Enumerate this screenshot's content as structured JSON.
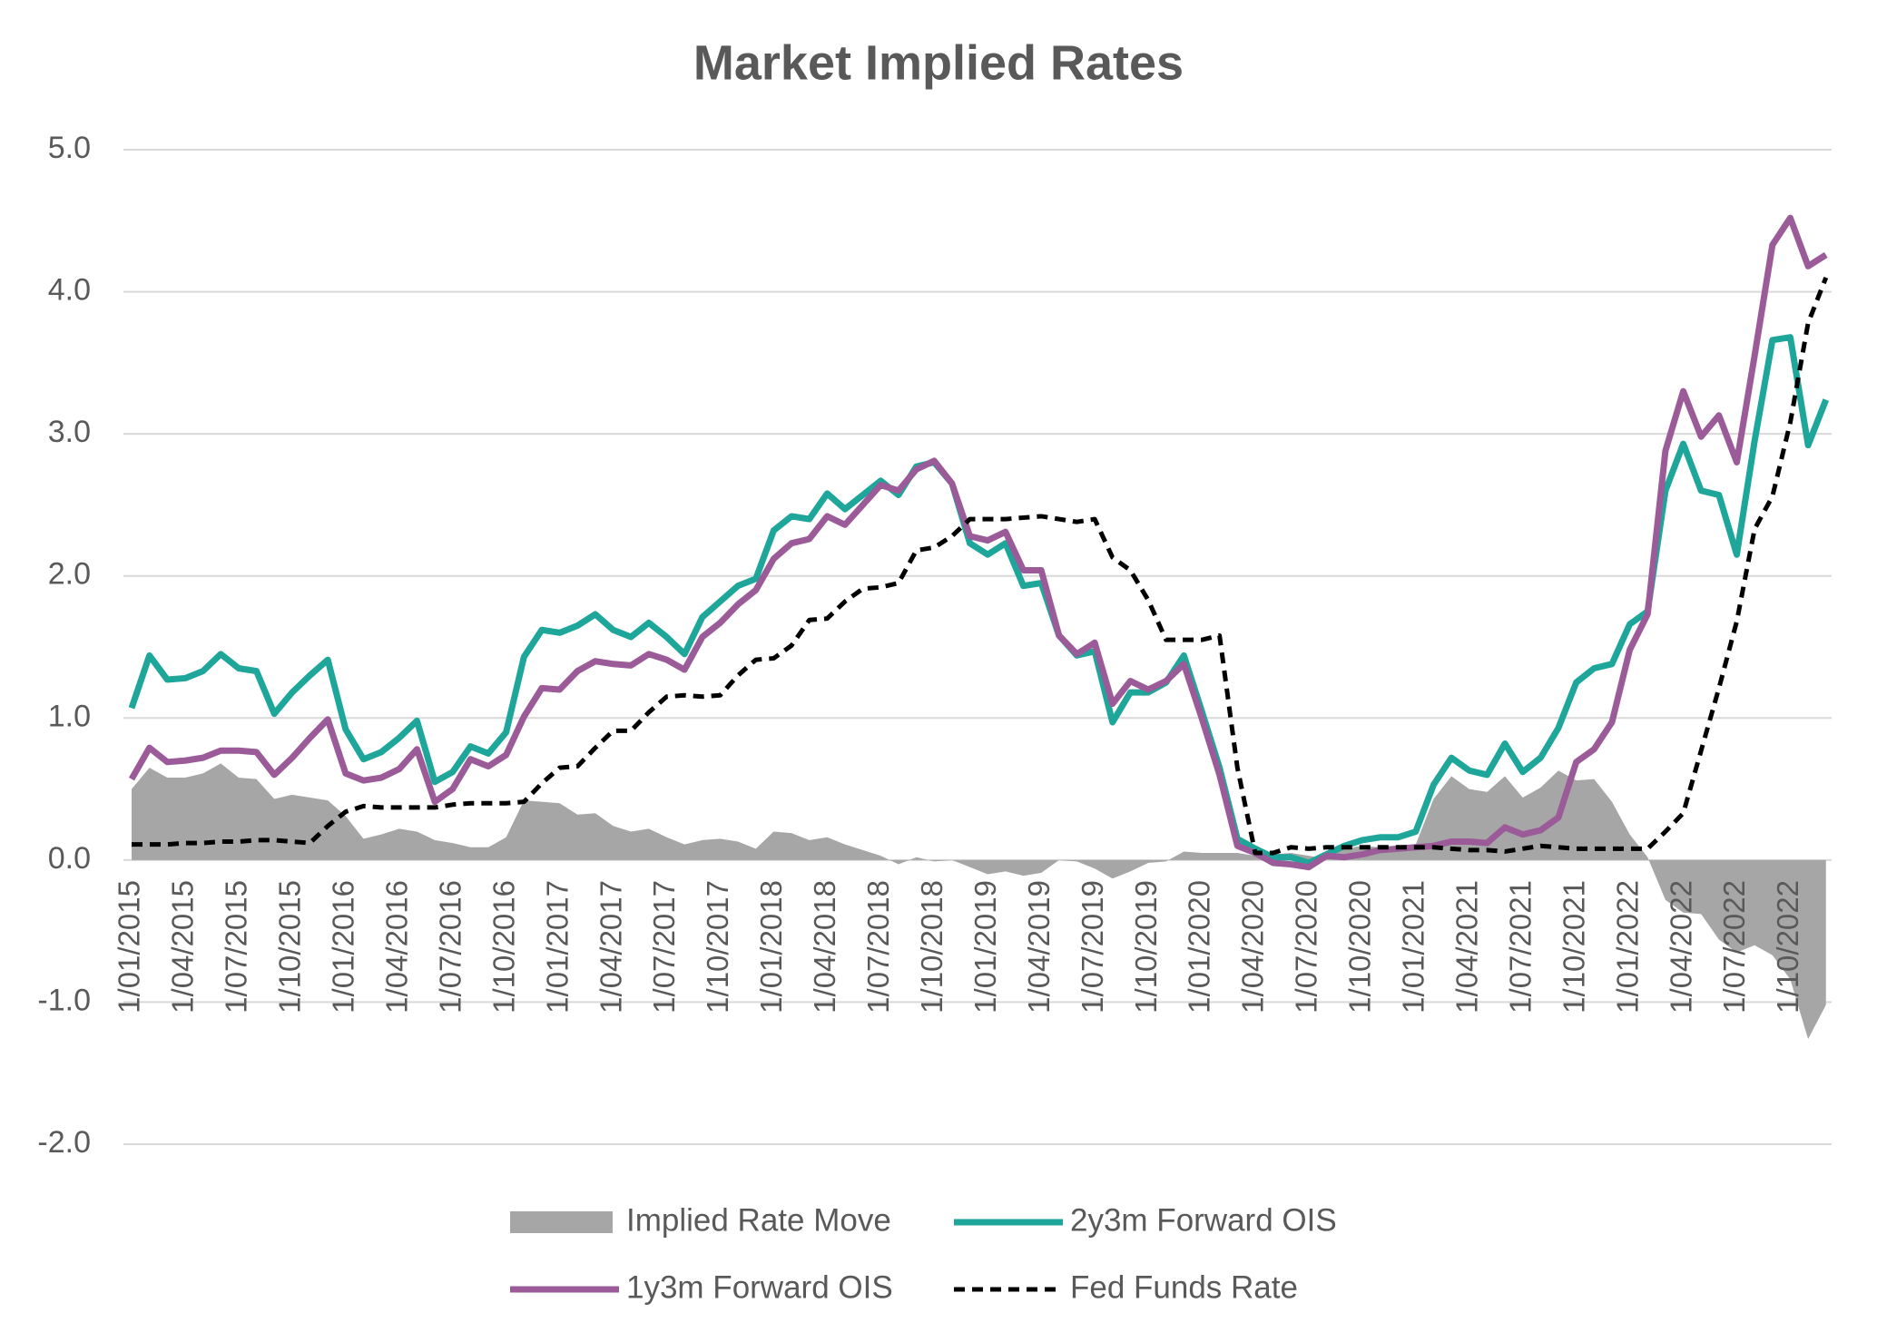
{
  "chart_data": {
    "type": "line",
    "title": "Market Implied Rates",
    "categories": [
      "1/01/2015",
      null,
      null,
      "1/04/2015",
      null,
      null,
      "1/07/2015",
      null,
      null,
      "1/10/2015",
      null,
      null,
      "1/01/2016",
      null,
      null,
      "1/04/2016",
      null,
      null,
      "1/07/2016",
      null,
      null,
      "1/10/2016",
      null,
      null,
      "1/01/2017",
      null,
      null,
      "1/04/2017",
      null,
      null,
      "1/07/2017",
      null,
      null,
      "1/10/2017",
      null,
      null,
      "1/01/2018",
      null,
      null,
      "1/04/2018",
      null,
      null,
      "1/07/2018",
      null,
      null,
      "1/10/2018",
      null,
      null,
      "1/01/2019",
      null,
      null,
      "1/04/2019",
      null,
      null,
      "1/07/2019",
      null,
      null,
      "1/10/2019",
      null,
      null,
      "1/01/2020",
      null,
      null,
      "1/04/2020",
      null,
      null,
      "1/07/2020",
      null,
      null,
      "1/10/2020",
      null,
      null,
      "1/01/2021",
      null,
      null,
      "1/04/2021",
      null,
      null,
      "1/07/2021",
      null,
      null,
      "1/10/2021",
      null,
      null,
      "1/01/2022",
      null,
      null,
      "1/04/2022",
      null,
      null,
      "1/07/2022",
      null,
      null,
      "1/10/2022",
      null,
      null
    ],
    "series": [
      {
        "name": "Implied Rate Move",
        "kind": "area",
        "color": "#a6a6a6",
        "values": [
          0.5,
          0.65,
          0.58,
          0.58,
          0.61,
          0.68,
          0.58,
          0.57,
          0.43,
          0.46,
          0.44,
          0.42,
          0.31,
          0.15,
          0.18,
          0.22,
          0.2,
          0.14,
          0.12,
          0.09,
          0.09,
          0.16,
          0.42,
          0.41,
          0.4,
          0.32,
          0.33,
          0.24,
          0.2,
          0.22,
          0.16,
          0.11,
          0.14,
          0.15,
          0.13,
          0.08,
          0.2,
          0.19,
          0.14,
          0.16,
          0.11,
          0.07,
          0.03,
          -0.03,
          0.02,
          -0.01,
          0.0,
          -0.05,
          -0.1,
          -0.08,
          -0.11,
          -0.09,
          0.0,
          -0.01,
          -0.06,
          -0.13,
          -0.08,
          -0.02,
          -0.01,
          0.06,
          0.05,
          0.05,
          0.05,
          0.03,
          0.04,
          0.05,
          0.03,
          0.01,
          0.08,
          0.1,
          0.09,
          0.08,
          0.11,
          0.43,
          0.59,
          0.5,
          0.48,
          0.59,
          0.44,
          0.51,
          0.63,
          0.56,
          0.57,
          0.41,
          0.18,
          0.02,
          -0.28,
          -0.37,
          -0.38,
          -0.56,
          -0.65,
          -0.6,
          -0.67,
          -0.84,
          -1.26,
          -1.02
        ]
      },
      {
        "name": "2y3m Forward OIS",
        "kind": "line",
        "color": "#1ea69b",
        "values": [
          1.07,
          1.44,
          1.27,
          1.28,
          1.33,
          1.45,
          1.35,
          1.33,
          1.03,
          1.18,
          1.3,
          1.41,
          0.92,
          0.71,
          0.76,
          0.86,
          0.98,
          0.55,
          0.62,
          0.8,
          0.75,
          0.9,
          1.43,
          1.62,
          1.6,
          1.65,
          1.73,
          1.62,
          1.57,
          1.67,
          1.57,
          1.45,
          1.71,
          1.82,
          1.93,
          1.98,
          2.32,
          2.42,
          2.4,
          2.58,
          2.47,
          2.57,
          2.67,
          2.57,
          2.77,
          2.8,
          2.65,
          2.23,
          2.15,
          2.23,
          1.93,
          1.95,
          1.58,
          1.44,
          1.47,
          0.97,
          1.18,
          1.18,
          1.25,
          1.44,
          1.05,
          0.65,
          0.15,
          0.08,
          0.02,
          0.02,
          -0.02,
          0.04,
          0.1,
          0.14,
          0.16,
          0.16,
          0.2,
          0.53,
          0.72,
          0.63,
          0.6,
          0.82,
          0.62,
          0.72,
          0.93,
          1.25,
          1.35,
          1.38,
          1.66,
          1.75,
          2.6,
          2.93,
          2.6,
          2.57,
          2.15,
          2.95,
          3.66,
          3.68,
          2.92,
          3.24
        ]
      },
      {
        "name": "1y3m Forward OIS",
        "kind": "line",
        "color": "#9b5b99",
        "values": [
          0.57,
          0.79,
          0.69,
          0.7,
          0.72,
          0.77,
          0.77,
          0.76,
          0.6,
          0.72,
          0.86,
          0.99,
          0.61,
          0.56,
          0.58,
          0.64,
          0.78,
          0.41,
          0.5,
          0.71,
          0.66,
          0.74,
          1.01,
          1.21,
          1.2,
          1.33,
          1.4,
          1.38,
          1.37,
          1.45,
          1.41,
          1.34,
          1.57,
          1.67,
          1.8,
          1.9,
          2.12,
          2.23,
          2.26,
          2.42,
          2.36,
          2.5,
          2.64,
          2.6,
          2.75,
          2.81,
          2.65,
          2.28,
          2.25,
          2.31,
          2.04,
          2.04,
          1.58,
          1.45,
          1.53,
          1.1,
          1.26,
          1.2,
          1.26,
          1.38,
          1.0,
          0.6,
          0.1,
          0.05,
          -0.02,
          -0.03,
          -0.05,
          0.03,
          0.02,
          0.04,
          0.07,
          0.08,
          0.09,
          0.1,
          0.13,
          0.13,
          0.12,
          0.23,
          0.18,
          0.21,
          0.3,
          0.69,
          0.78,
          0.97,
          1.48,
          1.73,
          2.88,
          3.3,
          2.98,
          3.13,
          2.8,
          3.55,
          4.33,
          4.52,
          4.18,
          4.26
        ]
      },
      {
        "name": "Fed Funds Rate",
        "kind": "dashed",
        "color": "#000000",
        "values": [
          0.11,
          0.11,
          0.11,
          0.12,
          0.12,
          0.13,
          0.13,
          0.14,
          0.14,
          0.13,
          0.12,
          0.24,
          0.34,
          0.38,
          0.37,
          0.37,
          0.37,
          0.37,
          0.39,
          0.4,
          0.4,
          0.4,
          0.41,
          0.54,
          0.65,
          0.66,
          0.79,
          0.91,
          0.91,
          1.04,
          1.15,
          1.16,
          1.15,
          1.16,
          1.3,
          1.41,
          1.42,
          1.51,
          1.69,
          1.7,
          1.82,
          1.91,
          1.92,
          1.95,
          2.18,
          2.2,
          2.28,
          2.4,
          2.4,
          2.4,
          2.41,
          2.42,
          2.4,
          2.38,
          2.4,
          2.13,
          2.04,
          1.83,
          1.55,
          1.55,
          1.55,
          1.58,
          0.65,
          0.05,
          0.05,
          0.09,
          0.08,
          0.09,
          0.09,
          0.09,
          0.09,
          0.09,
          0.09,
          0.09,
          0.08,
          0.07,
          0.07,
          0.06,
          0.08,
          0.1,
          0.09,
          0.08,
          0.08,
          0.08,
          0.08,
          0.08,
          0.2,
          0.33,
          0.77,
          1.21,
          1.68,
          2.33,
          2.56,
          3.08,
          3.78,
          4.1
        ]
      }
    ],
    "ylim": [
      -2,
      5
    ],
    "yticks": [
      {
        "value": -2,
        "label": "-2.0"
      },
      {
        "value": -1,
        "label": "-1.0"
      },
      {
        "value": 0,
        "label": "0.0"
      },
      {
        "value": 1,
        "label": "1.0"
      },
      {
        "value": 2,
        "label": "2.0"
      },
      {
        "value": 3,
        "label": "3.0"
      },
      {
        "value": 4,
        "label": "4.0"
      },
      {
        "value": 5,
        "label": "5.0"
      }
    ],
    "grid": true,
    "legend": "bottom"
  }
}
